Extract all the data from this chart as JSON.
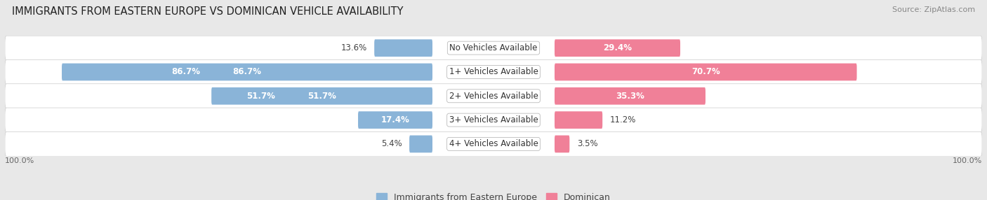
{
  "title": "IMMIGRANTS FROM EASTERN EUROPE VS DOMINICAN VEHICLE AVAILABILITY",
  "source": "Source: ZipAtlas.com",
  "categories": [
    "No Vehicles Available",
    "1+ Vehicles Available",
    "2+ Vehicles Available",
    "3+ Vehicles Available",
    "4+ Vehicles Available"
  ],
  "eastern_europe": [
    13.6,
    86.7,
    51.7,
    17.4,
    5.4
  ],
  "dominican": [
    29.4,
    70.7,
    35.3,
    11.2,
    3.5
  ],
  "eastern_color": "#8ab4d8",
  "dominican_color": "#f08098",
  "bg_color": "#e8e8e8",
  "row_bg_light": "#f5f5f5",
  "row_bg_dark": "#ebebeb",
  "label_fontsize": 8.5,
  "title_fontsize": 10.5,
  "source_fontsize": 8,
  "legend_fontsize": 9,
  "bar_height": 0.72
}
